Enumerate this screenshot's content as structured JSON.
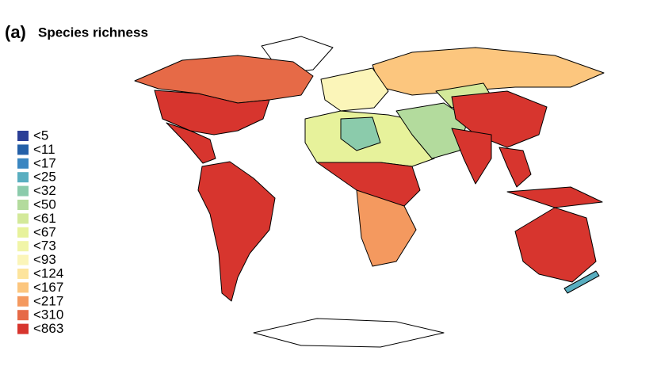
{
  "panel_label": "(a)",
  "title": "Species richness",
  "legend": {
    "items": [
      {
        "label": "<5",
        "color": "#2b3f96"
      },
      {
        "label": "<11",
        "color": "#2460a8"
      },
      {
        "label": "<17",
        "color": "#3a86c1"
      },
      {
        "label": "<25",
        "color": "#59aec0"
      },
      {
        "label": "<32",
        "color": "#8bcbab"
      },
      {
        "label": "<50",
        "color": "#b3db9d"
      },
      {
        "label": "<61",
        "color": "#d3e99a"
      },
      {
        "label": "<67",
        "color": "#e7f29b"
      },
      {
        "label": "<73",
        "color": "#f1f5a8"
      },
      {
        "label": "<93",
        "color": "#fbf5b9"
      },
      {
        "label": "<124",
        "color": "#fde49c"
      },
      {
        "label": "<167",
        "color": "#fcc67e"
      },
      {
        "label": "<217",
        "color": "#f4995f"
      },
      {
        "label": "<310",
        "color": "#e66a47"
      },
      {
        "label": "<863",
        "color": "#d7352e"
      }
    ]
  }
}
